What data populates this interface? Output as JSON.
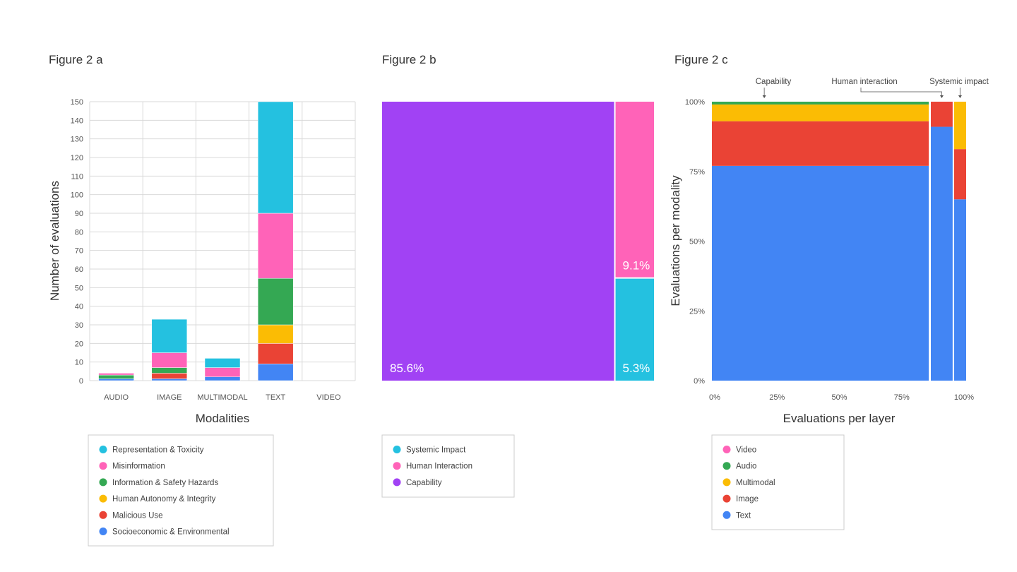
{
  "colors": {
    "cyan": "#24C1E0",
    "pink": "#FF63B8",
    "green": "#34A853",
    "yellow": "#FBBC04",
    "red": "#EA4335",
    "blue": "#4285F4",
    "purple": "#A142F4"
  },
  "chart_data": [
    {
      "type": "bar",
      "stacked": true,
      "title": "Figure 2 a",
      "xlabel": "Modalities",
      "ylabel": "Number of evaluations",
      "ylim": [
        0,
        150
      ],
      "yticks": [
        "0",
        "10",
        "20",
        "30",
        "40",
        "50",
        "60",
        "70",
        "80",
        "90",
        "100",
        "110",
        "120",
        "130",
        "140",
        "150"
      ],
      "grid": true,
      "legend_position": "bottom",
      "categories": [
        "AUDIO",
        "IMAGE",
        "MULTIMODAL",
        "TEXT",
        "VIDEO"
      ],
      "series": [
        {
          "name": "Socioeconomic & Environmental",
          "color": "#4285F4",
          "values": [
            1,
            1,
            2,
            9,
            0
          ]
        },
        {
          "name": "Malicious Use",
          "color": "#EA4335",
          "values": [
            0,
            3,
            0,
            11,
            0
          ]
        },
        {
          "name": "Human Autonomy & Integrity",
          "color": "#FBBC04",
          "values": [
            0,
            0,
            0,
            10,
            0
          ]
        },
        {
          "name": "Information & Safety Hazards",
          "color": "#34A853",
          "values": [
            2,
            3,
            0,
            25,
            0
          ]
        },
        {
          "name": "Misinformation",
          "color": "#FF63B8",
          "values": [
            1,
            8,
            5,
            35,
            0
          ]
        },
        {
          "name": "Representation & Toxicity",
          "color": "#24C1E0",
          "values": [
            0,
            18,
            5,
            60,
            0
          ]
        }
      ],
      "legend_order": [
        "Representation & Toxicity",
        "Misinformation",
        "Information & Safety Hazards",
        "Human Autonomy & Integrity",
        "Malicious Use",
        "Socioeconomic & Environmental"
      ]
    },
    {
      "type": "treemap",
      "title": "Figure 2 b",
      "legend_position": "bottom",
      "items": [
        {
          "name": "Capability",
          "value": 85.6,
          "label": "85.6%",
          "color": "#A142F4"
        },
        {
          "name": "Human Interaction",
          "value": 9.1,
          "label": "9.1%",
          "color": "#FF63B8"
        },
        {
          "name": "Systemic Impact",
          "value": 5.3,
          "label": "5.3%",
          "color": "#24C1E0"
        }
      ],
      "legend_order": [
        "Systemic Impact",
        "Human Interaction",
        "Capability"
      ]
    },
    {
      "type": "mosaic",
      "title": "Figure 2 c",
      "xlabel": "Evaluations per layer",
      "ylabel": "Evaluations per modality",
      "xticks": [
        "0%",
        "25%",
        "50%",
        "75%",
        "100%"
      ],
      "yticks": [
        "0%",
        "25%",
        "50%",
        "75%",
        "100%"
      ],
      "legend_position": "bottom",
      "columns": [
        {
          "name": "Capability",
          "width": 85.6,
          "segments": {
            "Text": 77,
            "Image": 16,
            "Multimodal": 6,
            "Audio": 1,
            "Video": 0
          }
        },
        {
          "name": "Human interaction",
          "width": 9.1,
          "segments": {
            "Text": 91,
            "Image": 9,
            "Multimodal": 0,
            "Audio": 0,
            "Video": 0
          }
        },
        {
          "name": "Systemic impact",
          "width": 5.3,
          "segments": {
            "Text": 65,
            "Image": 18,
            "Multimodal": 17,
            "Audio": 0,
            "Video": 0
          }
        }
      ],
      "series_colors": {
        "Text": "#4285F4",
        "Image": "#EA4335",
        "Multimodal": "#FBBC04",
        "Audio": "#34A853",
        "Video": "#FF63B8"
      },
      "legend_order": [
        "Video",
        "Audio",
        "Multimodal",
        "Image",
        "Text"
      ]
    }
  ]
}
